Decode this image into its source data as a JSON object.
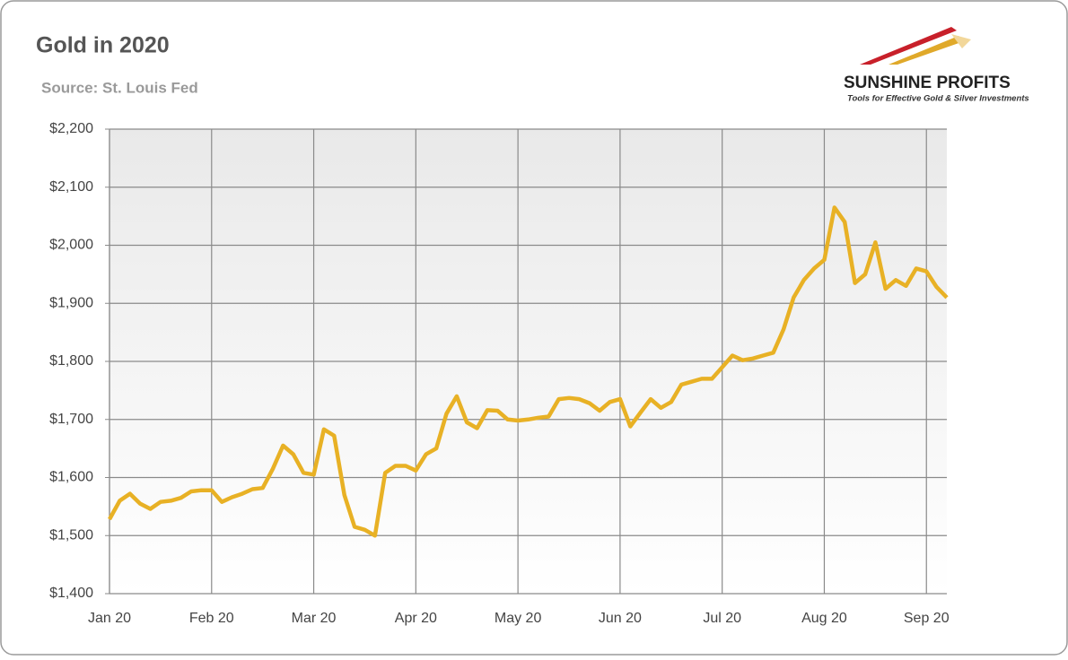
{
  "chart_data": {
    "type": "line",
    "title": "Gold in 2020",
    "subtitle": "Source: St. Louis Fed",
    "categories": [
      "Jan 20",
      null,
      null,
      null,
      null,
      null,
      null,
      null,
      null,
      null,
      "Feb 20",
      null,
      null,
      null,
      null,
      null,
      null,
      null,
      null,
      null,
      "Mar 20",
      null,
      null,
      null,
      null,
      null,
      null,
      null,
      null,
      null,
      "Apr 20",
      null,
      null,
      null,
      null,
      null,
      null,
      null,
      null,
      null,
      "May 20",
      null,
      null,
      null,
      null,
      null,
      null,
      null,
      null,
      null,
      "Jun 20",
      null,
      null,
      null,
      null,
      null,
      null,
      null,
      null,
      null,
      "Jul 20",
      null,
      null,
      null,
      null,
      null,
      null,
      null,
      null,
      null,
      "Aug 20",
      null,
      null,
      null,
      null,
      null,
      null,
      null,
      null,
      null,
      "Sep 20",
      null,
      null
    ],
    "values": [
      1528,
      1560,
      1572,
      1555,
      1546,
      1558,
      1560,
      1565,
      1576,
      1578,
      1578,
      1558,
      1566,
      1572,
      1580,
      1582,
      1615,
      1655,
      1640,
      1608,
      1605,
      1683,
      1672,
      1570,
      1515,
      1510,
      1500,
      1608,
      1620,
      1620,
      1612,
      1640,
      1650,
      1710,
      1740,
      1695,
      1685,
      1716,
      1715,
      1700,
      1698,
      1700,
      1703,
      1705,
      1735,
      1737,
      1735,
      1728,
      1715,
      1730,
      1735,
      1688,
      1712,
      1735,
      1720,
      1730,
      1760,
      1765,
      1770,
      1770,
      1790,
      1810,
      1802,
      1805,
      1810,
      1815,
      1855,
      1910,
      1940,
      1960,
      1975,
      2065,
      2040,
      1935,
      1950,
      2005,
      1925,
      1940,
      1930,
      1960,
      1955,
      1928,
      1910
    ],
    "color": "#e8b125",
    "ylim": [
      1400,
      2200
    ],
    "yticks": [
      {
        "value": 1400,
        "label": "$1,400"
      },
      {
        "value": 1500,
        "label": "$1,500"
      },
      {
        "value": 1600,
        "label": "$1,600"
      },
      {
        "value": 1700,
        "label": "$1,700"
      },
      {
        "value": 1800,
        "label": "$1,800"
      },
      {
        "value": 1900,
        "label": "$1,900"
      },
      {
        "value": 2000,
        "label": "$2,000"
      },
      {
        "value": 2100,
        "label": "$2,100"
      },
      {
        "value": 2200,
        "label": "$2,200"
      }
    ],
    "grid": true
  },
  "logo": {
    "name": "SUNSHINE PROFITS",
    "tagline": "Tools for Effective Gold & Silver Investments"
  }
}
